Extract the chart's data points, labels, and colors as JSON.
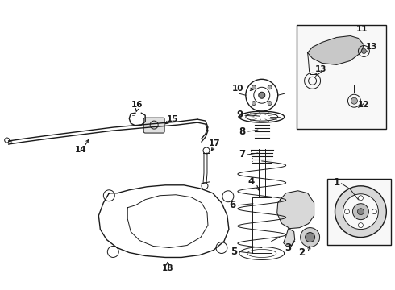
{
  "bg_color": "#ffffff",
  "line_color": "#1a1a1a",
  "fig_width": 4.9,
  "fig_height": 3.6,
  "dpi": 100,
  "label_fs": 8.5,
  "label_fs_sm": 7.5
}
